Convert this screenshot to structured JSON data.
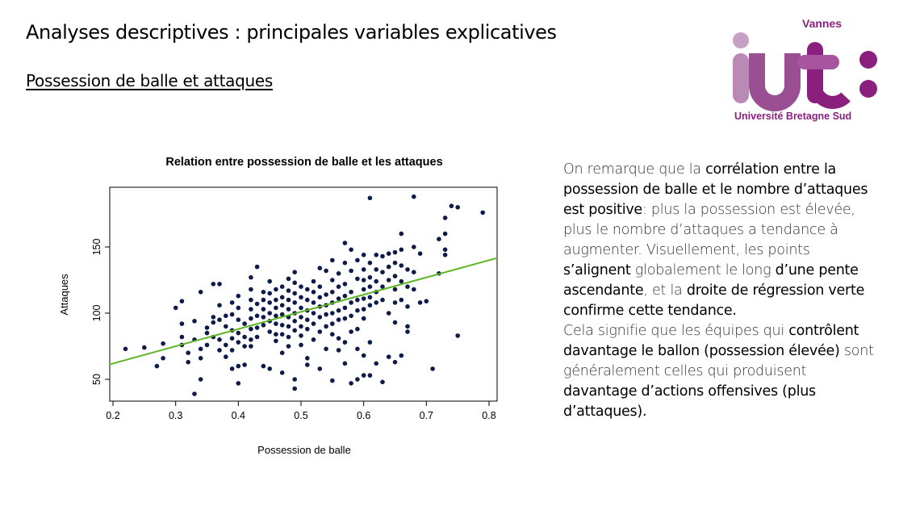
{
  "slide": {
    "title": "Analyses descriptives : principales variables explicatives",
    "subtitle": "Possession de balle et attaques"
  },
  "logo": {
    "top": "Vannes",
    "letters": "iut",
    "bottom": "Université Bretagne Sud",
    "color": "#8a1f7d",
    "light_color": "#c8a0c4"
  },
  "chart_data": {
    "type": "scatter",
    "title": "Relation entre possession de balle et les attaques",
    "xlabel": "Possession de balle",
    "ylabel": "Attaques",
    "xlim": [
      0.2,
      0.8
    ],
    "ylim": [
      40,
      190
    ],
    "xticks": [
      "0.2",
      "0.3",
      "0.4",
      "0.5",
      "0.6",
      "0.7",
      "0.8"
    ],
    "yticks": [
      "50",
      "100",
      "150"
    ],
    "point_color": "#0d1a4a",
    "line_color": "#5db523",
    "regression": {
      "intercept": 36,
      "slope": 130
    },
    "points": [
      [
        0.22,
        73
      ],
      [
        0.25,
        74
      ],
      [
        0.27,
        60
      ],
      [
        0.28,
        66
      ],
      [
        0.28,
        77
      ],
      [
        0.3,
        104
      ],
      [
        0.31,
        109
      ],
      [
        0.31,
        92
      ],
      [
        0.31,
        82
      ],
      [
        0.31,
        76
      ],
      [
        0.32,
        70
      ],
      [
        0.32,
        63
      ],
      [
        0.33,
        39
      ],
      [
        0.33,
        94
      ],
      [
        0.33,
        80
      ],
      [
        0.34,
        73
      ],
      [
        0.34,
        66
      ],
      [
        0.34,
        50
      ],
      [
        0.34,
        116
      ],
      [
        0.35,
        89
      ],
      [
        0.35,
        85
      ],
      [
        0.35,
        76
      ],
      [
        0.36,
        122
      ],
      [
        0.36,
        97
      ],
      [
        0.36,
        93
      ],
      [
        0.36,
        82
      ],
      [
        0.37,
        122
      ],
      [
        0.37,
        106
      ],
      [
        0.37,
        95
      ],
      [
        0.37,
        80
      ],
      [
        0.37,
        72
      ],
      [
        0.38,
        98
      ],
      [
        0.38,
        90
      ],
      [
        0.38,
        76
      ],
      [
        0.38,
        67
      ],
      [
        0.39,
        108
      ],
      [
        0.39,
        99
      ],
      [
        0.39,
        87
      ],
      [
        0.39,
        81
      ],
      [
        0.39,
        72
      ],
      [
        0.39,
        58
      ],
      [
        0.4,
        113
      ],
      [
        0.4,
        104
      ],
      [
        0.4,
        95
      ],
      [
        0.4,
        85
      ],
      [
        0.4,
        78
      ],
      [
        0.4,
        60
      ],
      [
        0.4,
        47
      ],
      [
        0.41,
        92
      ],
      [
        0.41,
        82
      ],
      [
        0.41,
        75
      ],
      [
        0.41,
        61
      ],
      [
        0.42,
        127
      ],
      [
        0.42,
        118
      ],
      [
        0.42,
        110
      ],
      [
        0.42,
        103
      ],
      [
        0.42,
        96
      ],
      [
        0.42,
        88
      ],
      [
        0.42,
        80
      ],
      [
        0.42,
        75
      ],
      [
        0.43,
        135
      ],
      [
        0.43,
        107
      ],
      [
        0.43,
        98
      ],
      [
        0.43,
        89
      ],
      [
        0.43,
        82
      ],
      [
        0.44,
        116
      ],
      [
        0.44,
        110
      ],
      [
        0.44,
        103
      ],
      [
        0.44,
        97
      ],
      [
        0.44,
        91
      ],
      [
        0.44,
        60
      ],
      [
        0.45,
        124
      ],
      [
        0.45,
        115
      ],
      [
        0.45,
        108
      ],
      [
        0.45,
        100
      ],
      [
        0.45,
        94
      ],
      [
        0.45,
        86
      ],
      [
        0.45,
        58
      ],
      [
        0.46,
        118
      ],
      [
        0.46,
        110
      ],
      [
        0.46,
        104
      ],
      [
        0.46,
        98
      ],
      [
        0.46,
        92
      ],
      [
        0.46,
        84
      ],
      [
        0.46,
        79
      ],
      [
        0.47,
        120
      ],
      [
        0.47,
        112
      ],
      [
        0.47,
        106
      ],
      [
        0.47,
        99
      ],
      [
        0.47,
        91
      ],
      [
        0.47,
        84
      ],
      [
        0.47,
        70
      ],
      [
        0.47,
        55
      ],
      [
        0.48,
        126
      ],
      [
        0.48,
        117
      ],
      [
        0.48,
        110
      ],
      [
        0.48,
        103
      ],
      [
        0.48,
        97
      ],
      [
        0.48,
        90
      ],
      [
        0.48,
        82
      ],
      [
        0.48,
        75
      ],
      [
        0.49,
        131
      ],
      [
        0.49,
        123
      ],
      [
        0.49,
        115
      ],
      [
        0.49,
        108
      ],
      [
        0.49,
        100
      ],
      [
        0.49,
        94
      ],
      [
        0.49,
        87
      ],
      [
        0.49,
        50
      ],
      [
        0.49,
        43
      ],
      [
        0.5,
        120
      ],
      [
        0.5,
        112
      ],
      [
        0.5,
        104
      ],
      [
        0.5,
        97
      ],
      [
        0.5,
        90
      ],
      [
        0.5,
        83
      ],
      [
        0.5,
        76
      ],
      [
        0.51,
        118
      ],
      [
        0.51,
        110
      ],
      [
        0.51,
        102
      ],
      [
        0.51,
        95
      ],
      [
        0.51,
        88
      ],
      [
        0.51,
        66
      ],
      [
        0.51,
        61
      ],
      [
        0.52,
        124
      ],
      [
        0.52,
        116
      ],
      [
        0.52,
        108
      ],
      [
        0.52,
        100
      ],
      [
        0.52,
        92
      ],
      [
        0.52,
        80
      ],
      [
        0.53,
        134
      ],
      [
        0.53,
        120
      ],
      [
        0.53,
        112
      ],
      [
        0.53,
        105
      ],
      [
        0.53,
        97
      ],
      [
        0.53,
        86
      ],
      [
        0.53,
        58
      ],
      [
        0.54,
        132
      ],
      [
        0.54,
        114
      ],
      [
        0.54,
        106
      ],
      [
        0.54,
        99
      ],
      [
        0.54,
        90
      ],
      [
        0.54,
        73
      ],
      [
        0.55,
        140
      ],
      [
        0.55,
        125
      ],
      [
        0.55,
        116
      ],
      [
        0.55,
        108
      ],
      [
        0.55,
        100
      ],
      [
        0.55,
        92
      ],
      [
        0.55,
        84
      ],
      [
        0.55,
        49
      ],
      [
        0.56,
        130
      ],
      [
        0.56,
        120
      ],
      [
        0.56,
        111
      ],
      [
        0.56,
        102
      ],
      [
        0.56,
        95
      ],
      [
        0.56,
        81
      ],
      [
        0.56,
        72
      ],
      [
        0.57,
        153
      ],
      [
        0.57,
        138
      ],
      [
        0.57,
        122
      ],
      [
        0.57,
        113
      ],
      [
        0.57,
        104
      ],
      [
        0.57,
        96
      ],
      [
        0.57,
        78
      ],
      [
        0.57,
        62
      ],
      [
        0.58,
        148
      ],
      [
        0.58,
        132
      ],
      [
        0.58,
        116
      ],
      [
        0.58,
        108
      ],
      [
        0.58,
        98
      ],
      [
        0.58,
        86
      ],
      [
        0.58,
        47
      ],
      [
        0.59,
        140
      ],
      [
        0.59,
        126
      ],
      [
        0.59,
        110
      ],
      [
        0.59,
        102
      ],
      [
        0.59,
        88
      ],
      [
        0.59,
        73
      ],
      [
        0.59,
        50
      ],
      [
        0.6,
        144
      ],
      [
        0.6,
        133
      ],
      [
        0.6,
        125
      ],
      [
        0.6,
        118
      ],
      [
        0.6,
        111
      ],
      [
        0.6,
        103
      ],
      [
        0.6,
        96
      ],
      [
        0.6,
        68
      ],
      [
        0.6,
        53
      ],
      [
        0.61,
        187
      ],
      [
        0.61,
        138
      ],
      [
        0.61,
        127
      ],
      [
        0.61,
        120
      ],
      [
        0.61,
        112
      ],
      [
        0.61,
        106
      ],
      [
        0.61,
        78
      ],
      [
        0.61,
        53
      ],
      [
        0.62,
        144
      ],
      [
        0.62,
        133
      ],
      [
        0.62,
        124
      ],
      [
        0.62,
        116
      ],
      [
        0.62,
        108
      ],
      [
        0.62,
        62
      ],
      [
        0.63,
        143
      ],
      [
        0.63,
        131
      ],
      [
        0.63,
        120
      ],
      [
        0.63,
        110
      ],
      [
        0.63,
        48
      ],
      [
        0.64,
        145
      ],
      [
        0.64,
        135
      ],
      [
        0.64,
        125
      ],
      [
        0.64,
        100
      ],
      [
        0.64,
        67
      ],
      [
        0.65,
        146
      ],
      [
        0.65,
        138
      ],
      [
        0.65,
        128
      ],
      [
        0.65,
        118
      ],
      [
        0.65,
        108
      ],
      [
        0.65,
        93
      ],
      [
        0.65,
        63
      ],
      [
        0.66,
        160
      ],
      [
        0.66,
        148
      ],
      [
        0.66,
        136
      ],
      [
        0.66,
        124
      ],
      [
        0.66,
        110
      ],
      [
        0.66,
        68
      ],
      [
        0.67,
        133
      ],
      [
        0.67,
        120
      ],
      [
        0.67,
        105
      ],
      [
        0.67,
        90
      ],
      [
        0.67,
        86
      ],
      [
        0.68,
        188
      ],
      [
        0.68,
        150
      ],
      [
        0.68,
        131
      ],
      [
        0.68,
        118
      ],
      [
        0.69,
        145
      ],
      [
        0.69,
        108
      ],
      [
        0.7,
        109
      ],
      [
        0.71,
        58
      ],
      [
        0.72,
        156
      ],
      [
        0.72,
        130
      ],
      [
        0.73,
        172
      ],
      [
        0.73,
        160
      ],
      [
        0.73,
        148
      ],
      [
        0.73,
        144
      ],
      [
        0.74,
        181
      ],
      [
        0.75,
        180
      ],
      [
        0.75,
        83
      ],
      [
        0.79,
        176
      ]
    ]
  },
  "description": {
    "s1": "On remarque que la ",
    "s2": "corrélation entre la possession de balle et le nombre d’attaques est positive",
    "s3": ": plus la possession est élevée, plus le nombre d’attaques a tendance à augmenter. Visuellement, les points ",
    "s4": "s’alignent",
    "s5": " globalement le long ",
    "s6": "d’une pente ascendante",
    "s7": ", et la ",
    "s8": "droite de régression verte confirme cette tendance.",
    "s9": "Cela signifie que les équipes qui ",
    "s10": "contrôlent davantage le ballon (possession élevée)",
    "s11": " sont généralement celles qui produisent ",
    "s12": "davantage d’actions offensives (plus d’attaques)."
  }
}
